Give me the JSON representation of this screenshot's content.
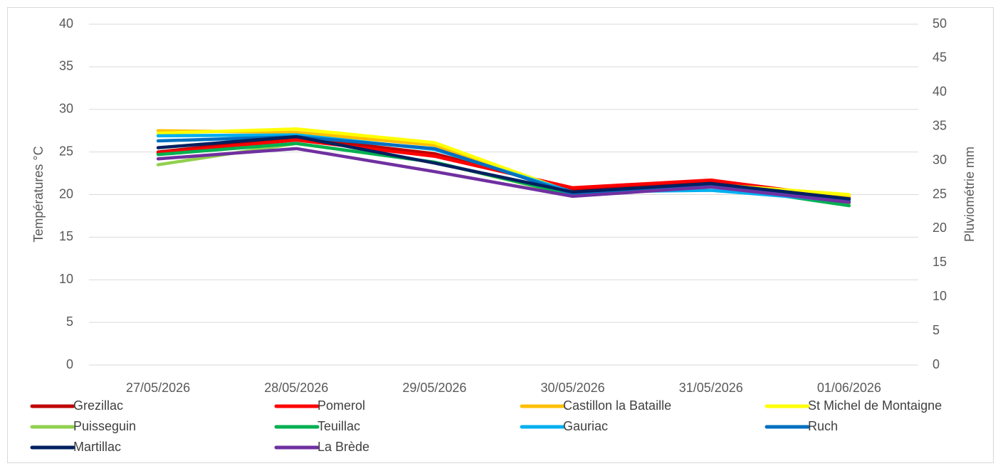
{
  "chart_data": {
    "type": "line",
    "y_label": "Températures °C",
    "y2_label": "Pluviométrie mm",
    "categories": [
      "27/05/2026",
      "28/05/2026",
      "29/05/2026",
      "30/05/2026",
      "31/05/2026",
      "01/06/2026"
    ],
    "ylim": [
      0,
      40
    ],
    "yticks": [
      0,
      5,
      10,
      15,
      20,
      25,
      30,
      35,
      40
    ],
    "y2lim": [
      0,
      50
    ],
    "y2ticks": [
      0,
      5,
      10,
      15,
      20,
      25,
      30,
      35,
      40,
      45,
      50
    ],
    "grid": true,
    "legend": "bottom",
    "series": [
      {
        "name": "Grezillac",
        "color": "#c00000",
        "values": [
          25.0,
          26.7,
          24.8,
          20.6,
          21.6,
          19.5
        ]
      },
      {
        "name": "Pomerol",
        "color": "#ff0000",
        "values": [
          24.9,
          26.4,
          24.5,
          20.8,
          21.7,
          19.6
        ]
      },
      {
        "name": "Castillon la Bataille",
        "color": "#ffc000",
        "values": [
          27.5,
          27.3,
          25.8,
          20.0,
          21.0,
          19.8
        ]
      },
      {
        "name": "St Michel de Montaigne",
        "color": "#ffff00",
        "values": [
          27.2,
          27.7,
          26.1,
          20.2,
          21.2,
          20.0
        ]
      },
      {
        "name": "Puisseguin",
        "color": "#92d050",
        "values": [
          23.5,
          26.0,
          23.8,
          19.9,
          21.0,
          19.0
        ]
      },
      {
        "name": "Teuillac",
        "color": "#00b050",
        "values": [
          24.7,
          26.0,
          23.8,
          20.0,
          21.1,
          18.7
        ]
      },
      {
        "name": "Gauriac",
        "color": "#00b0f0",
        "values": [
          26.9,
          27.0,
          25.3,
          20.3,
          20.5,
          19.2
        ]
      },
      {
        "name": "Ruch",
        "color": "#0070c0",
        "values": [
          26.3,
          26.8,
          25.4,
          20.1,
          21.0,
          19.4
        ]
      },
      {
        "name": "Martillac",
        "color": "#002060",
        "values": [
          25.5,
          26.8,
          23.7,
          20.3,
          21.3,
          19.5
        ]
      },
      {
        "name": "La Brède",
        "color": "#7030a0",
        "values": [
          24.2,
          25.4,
          22.7,
          19.8,
          20.9,
          19.1
        ]
      }
    ]
  }
}
